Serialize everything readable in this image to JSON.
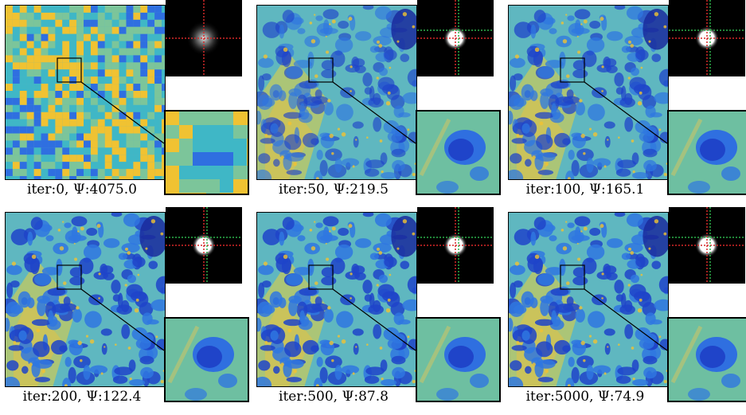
{
  "panels": [
    {
      "iter_label": "iter:0, Ψ:4075.0",
      "stage": 0
    },
    {
      "iter_label": "iter:50, Ψ:219.5",
      "stage": 1
    },
    {
      "iter_label": "iter:100, Ψ:165.1",
      "stage": 2
    },
    {
      "iter_label": "iter:200, Ψ:122.4",
      "stage": 3
    },
    {
      "iter_label": "iter:500, Ψ:87.8",
      "stage": 4
    },
    {
      "iter_label": "iter:5000, Ψ:74.9",
      "stage": 5
    }
  ],
  "colors": {
    "high": "#f2c230",
    "mid": "#3fb7a6",
    "low": "#2a4fd6",
    "deep": "#1a2b9c",
    "psf_center": "#ffffff",
    "crosshair_red": "#d62828",
    "crosshair_green": "#2cb24a"
  }
}
